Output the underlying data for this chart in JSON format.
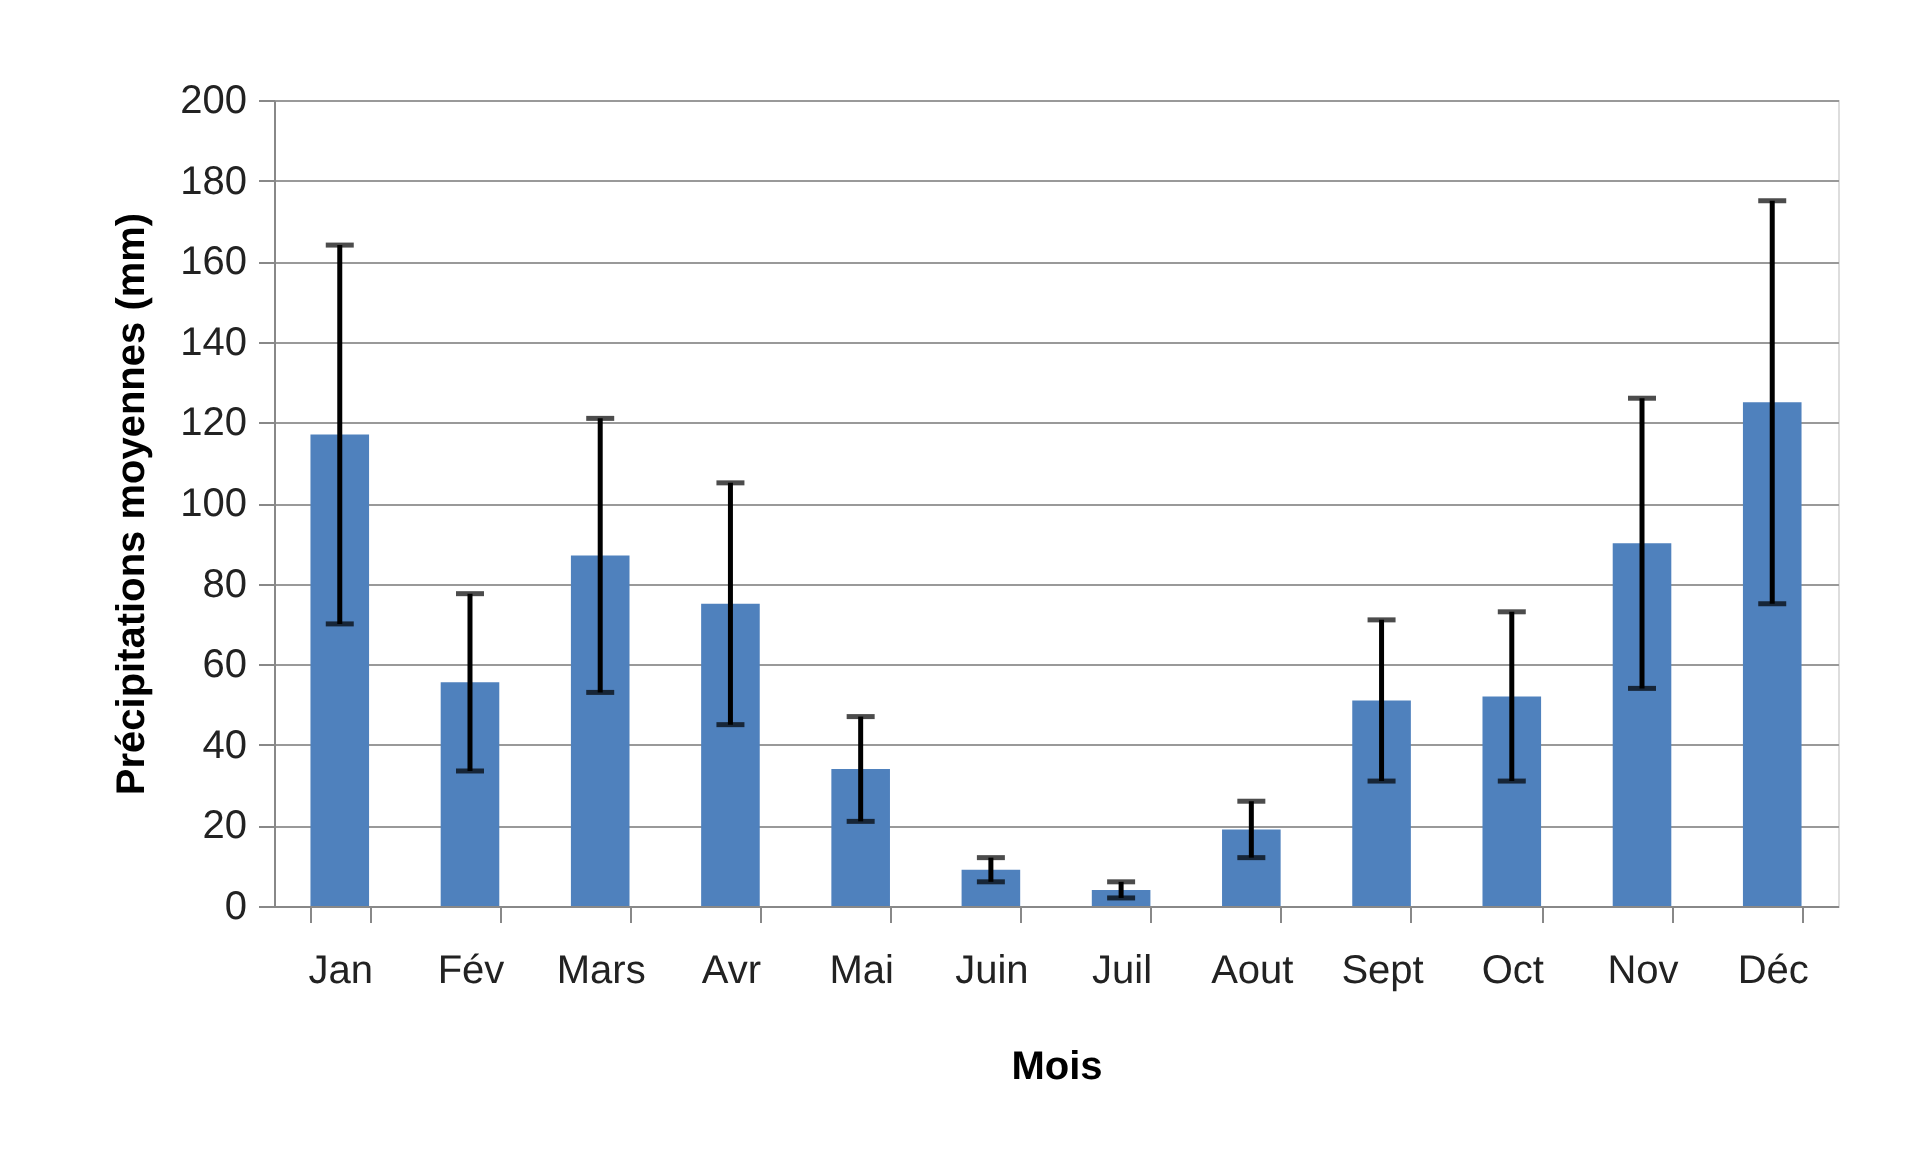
{
  "chart_data": {
    "type": "bar",
    "xlabel": "Mois",
    "ylabel": "Précipitations moyennes (mm)",
    "categories": [
      "Jan",
      "Fév",
      "Mars",
      "Avr",
      "Mai",
      "Juin",
      "Juil",
      "Aout",
      "Sept",
      "Oct",
      "Nov",
      "Déc"
    ],
    "values": [
      117,
      55.5,
      87,
      75,
      34,
      9,
      4,
      19,
      51,
      52,
      90,
      125
    ],
    "errors": [
      47,
      22,
      34,
      30,
      13,
      3,
      2,
      7,
      20,
      21,
      36,
      50
    ],
    "color": "#4f81bd",
    "ylim": [
      0,
      200
    ],
    "yticks": [
      0,
      20,
      40,
      60,
      80,
      100,
      120,
      140,
      160,
      180,
      200
    ],
    "grid": "y"
  }
}
